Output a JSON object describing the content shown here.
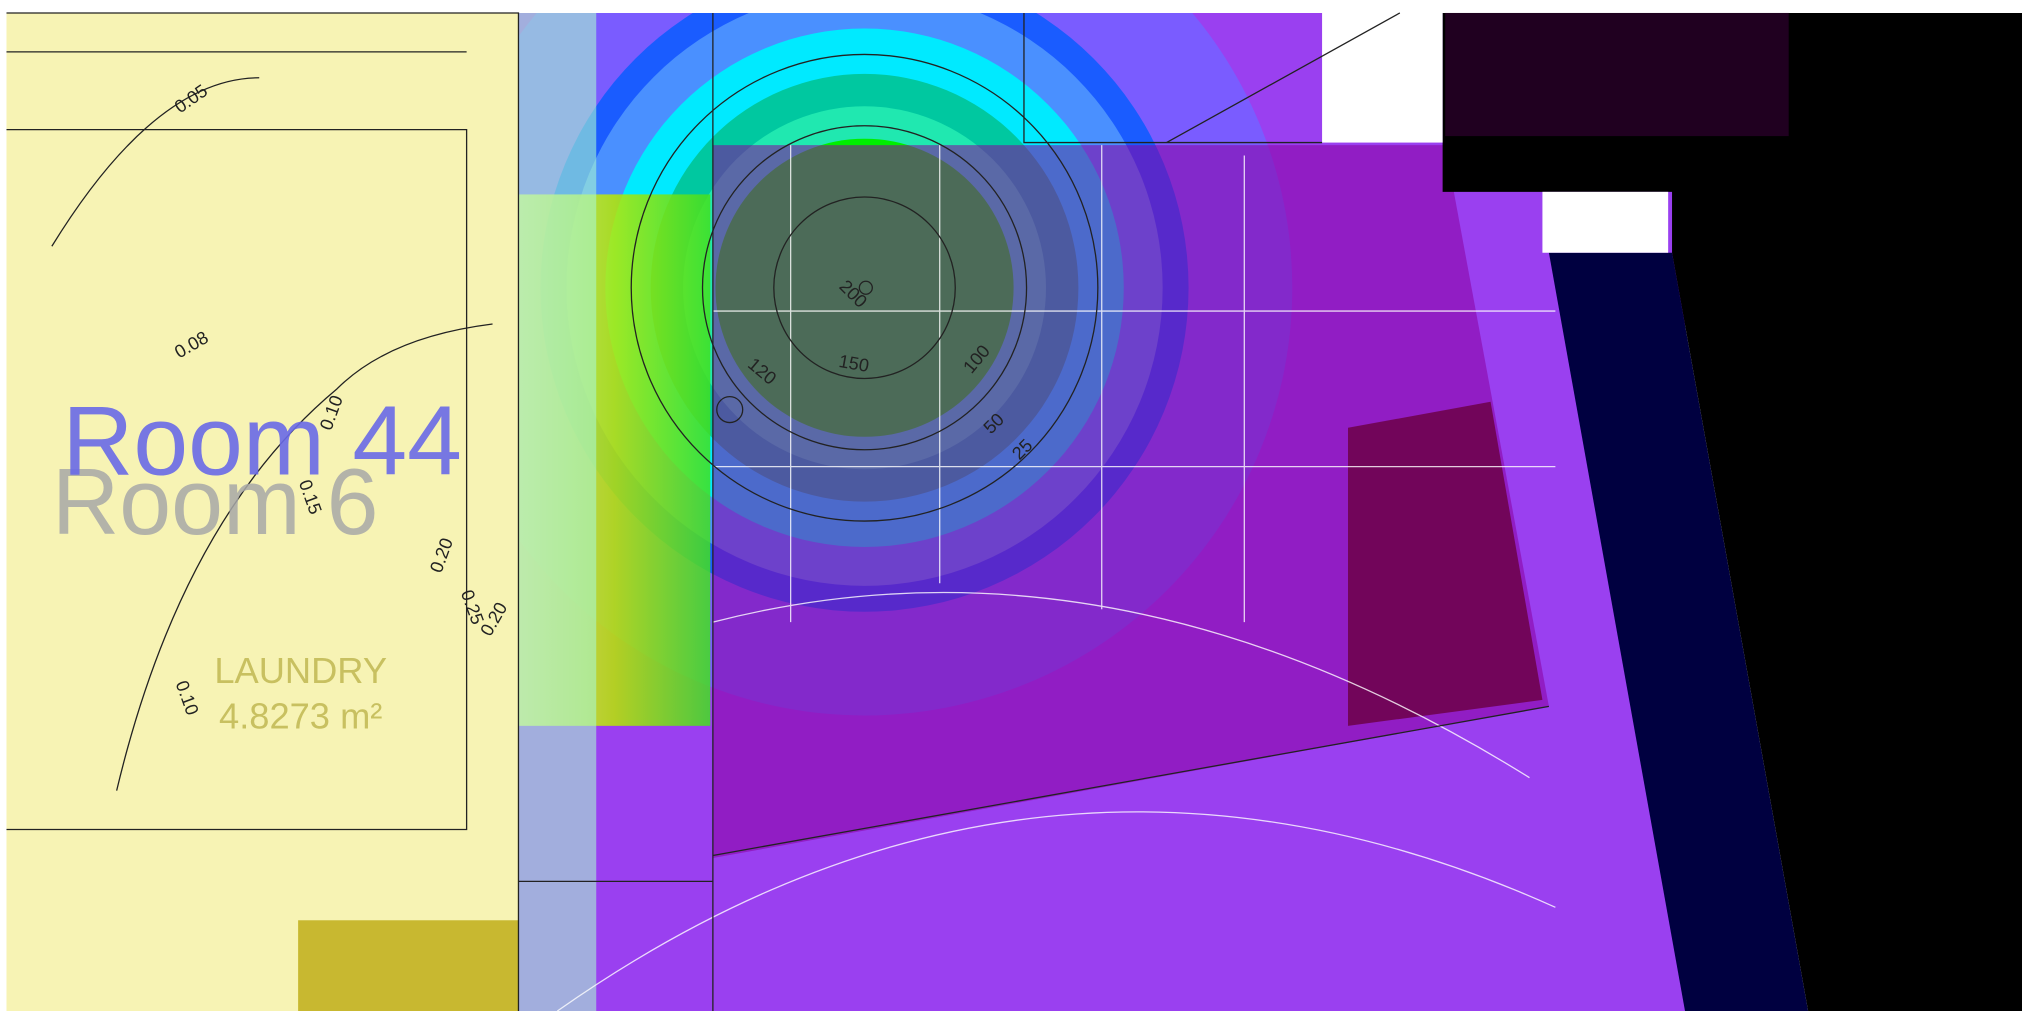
{
  "rooms": [
    {
      "label": "Room 44"
    },
    {
      "label": "Room 6"
    }
  ],
  "area": {
    "name": "LAUNDRY",
    "size": "4.8273 m²"
  },
  "contour_labels": [
    "0.05",
    "0.08",
    "0.10",
    "0.10",
    "0.15",
    "0.20",
    "0.25",
    "0.20",
    "200",
    "150",
    "120",
    "100",
    "50",
    "25"
  ]
}
